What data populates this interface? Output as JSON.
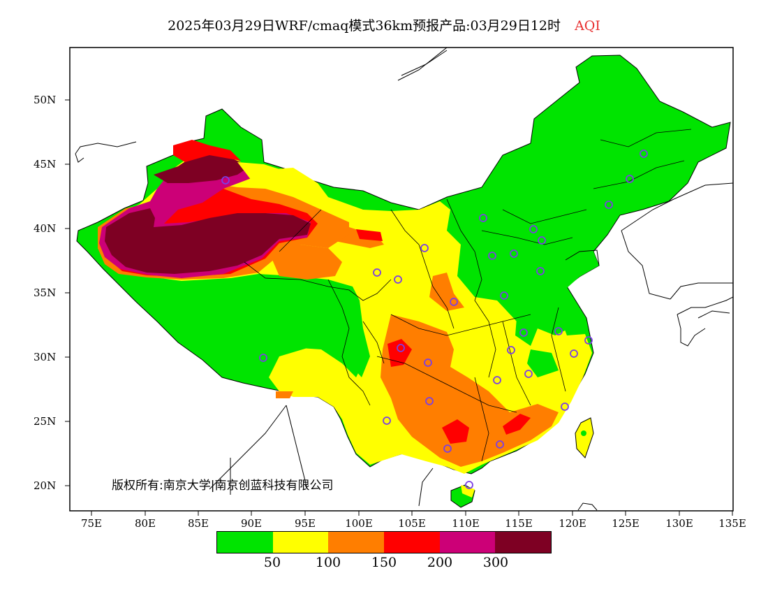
{
  "title": {
    "text": "2025年03月29日WRF/cmaq模式36km预报产品:03月29日12时",
    "variable": "AQI",
    "variable_color": "#e83030"
  },
  "axes": {
    "lat_labels": [
      "50N",
      "45N",
      "40N",
      "35N",
      "30N",
      "25N",
      "20N"
    ],
    "lon_labels": [
      "75E",
      "80E",
      "85E",
      "90E",
      "95E",
      "100E",
      "105E",
      "110E",
      "115E",
      "120E",
      "125E",
      "130E",
      "135E"
    ]
  },
  "copyright": "版权所有:南京大学|南京创蓝科技有限公司",
  "legend": {
    "colors": [
      "#00e400",
      "#ffff00",
      "#ff7e00",
      "#ff0000",
      "#cc0077",
      "#7e0023"
    ],
    "labels": [
      "50",
      "100",
      "150",
      "200",
      "300"
    ]
  },
  "palette": {
    "good": "#00e400",
    "moderate": "#ffff00",
    "usg": "#ff7e00",
    "unhealthy": "#ff0000",
    "very_unhealthy": "#cc0077",
    "hazardous": "#7e0023",
    "station_marker": "#7b3fe4"
  }
}
